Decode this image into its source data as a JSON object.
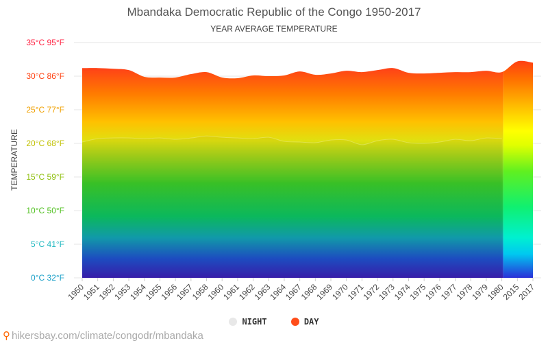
{
  "chart_data": {
    "type": "area",
    "title": "Mbandaka Democratic Republic of the Congo 1950-2017",
    "subtitle": "YEAR AVERAGE TEMPERATURE",
    "ylabel": "TEMPERATURE",
    "ylim": [
      0,
      35
    ],
    "yticks": [
      {
        "value": 0,
        "label": "0°C 32°F"
      },
      {
        "value": 5,
        "label": "5°C 41°F"
      },
      {
        "value": 10,
        "label": "10°C 50°F"
      },
      {
        "value": 15,
        "label": "15°C 59°F"
      },
      {
        "value": 20,
        "label": "20°C 68°F"
      },
      {
        "value": 25,
        "label": "25°C 77°F"
      },
      {
        "value": 30,
        "label": "30°C 86°F"
      },
      {
        "value": 35,
        "label": "35°C 95°F"
      }
    ],
    "categories": [
      "1950",
      "1951",
      "1952",
      "1953",
      "1954",
      "1955",
      "1956",
      "1957",
      "1958",
      "1960",
      "1961",
      "1962",
      "1963",
      "1964",
      "1967",
      "1968",
      "1969",
      "1970",
      "1971",
      "1972",
      "1973",
      "1974",
      "1975",
      "1976",
      "1977",
      "1978",
      "1979",
      "1980",
      "2015",
      "2017"
    ],
    "series": [
      {
        "name": "NIGHT",
        "color": "#e8e8e8",
        "values": [
          20.2,
          20.7,
          20.8,
          20.8,
          20.7,
          20.8,
          20.6,
          20.8,
          21.1,
          20.9,
          20.8,
          20.7,
          20.9,
          20.3,
          20.2,
          20.1,
          20.5,
          20.5,
          19.8,
          20.4,
          20.6,
          20.1,
          20.0,
          20.2,
          20.6,
          20.4,
          20.8,
          20.7,
          null,
          null
        ]
      },
      {
        "name": "DAY",
        "color": "#ff4d1a",
        "values": [
          31.2,
          31.2,
          31.1,
          30.9,
          29.9,
          29.8,
          29.8,
          30.3,
          30.6,
          29.8,
          29.7,
          30.1,
          30.0,
          30.1,
          30.7,
          30.2,
          30.4,
          30.8,
          30.6,
          30.9,
          31.2,
          30.5,
          30.4,
          30.5,
          30.6,
          30.6,
          30.8,
          30.6,
          32.2,
          32.0
        ]
      }
    ],
    "grid": true,
    "legend_position": "bottom"
  },
  "source": {
    "text": "hikersbay.com/climate/congodr/mbandaka",
    "icon": "map-pin-icon"
  }
}
